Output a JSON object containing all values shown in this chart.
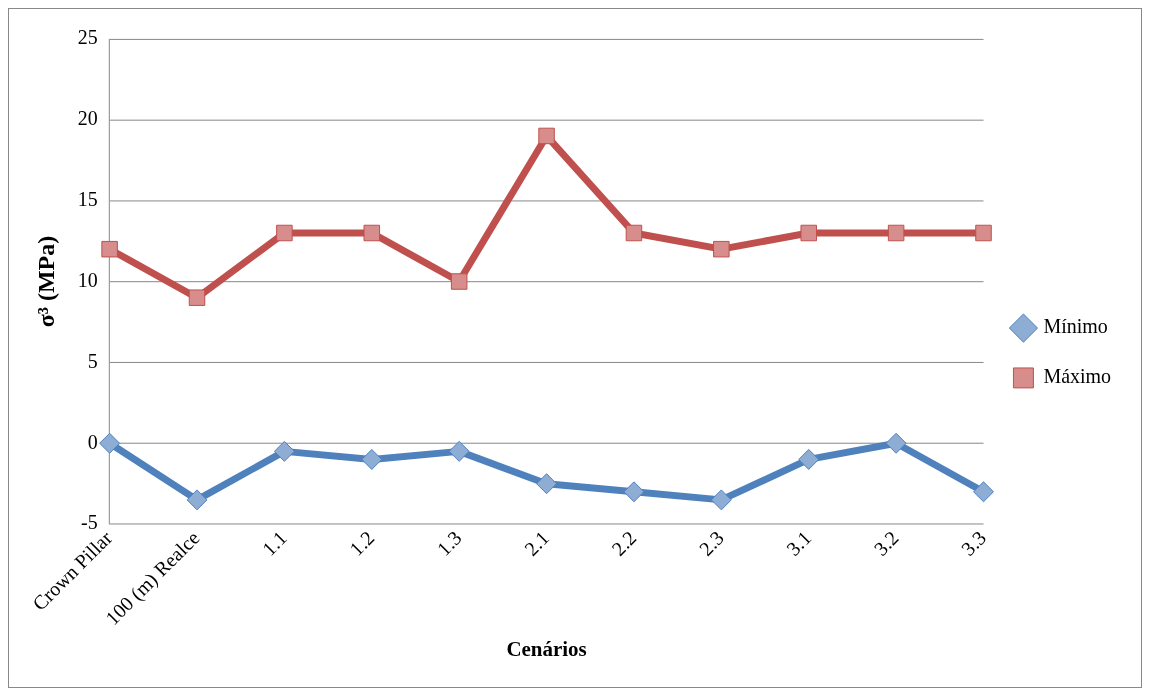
{
  "chart_data": {
    "type": "line",
    "xlabel": "Cenários",
    "ylabel": "σ³ (MPa)",
    "categories": [
      "Crown Pillar",
      "100 (m) Realce",
      "1.1",
      "1.2",
      "1.3",
      "2.1",
      "2.2",
      "2.3",
      "3.1",
      "3.2",
      "3.3"
    ],
    "series": [
      {
        "name": "Mínimo",
        "color": "#4f81bd",
        "marker": "diamond",
        "values": [
          0,
          -3.5,
          -0.5,
          -1,
          -0.5,
          -2.5,
          -3,
          -3.5,
          -1,
          0,
          -3
        ]
      },
      {
        "name": "Máximo",
        "color": "#c0504d",
        "marker": "square",
        "values": [
          12,
          9,
          13,
          13,
          10,
          19,
          13,
          12,
          13,
          13,
          13
        ]
      }
    ],
    "ylim": [
      -5,
      25
    ],
    "yticks": [
      -5,
      0,
      5,
      10,
      15,
      20,
      25
    ],
    "grid": "y",
    "legend": "right"
  }
}
